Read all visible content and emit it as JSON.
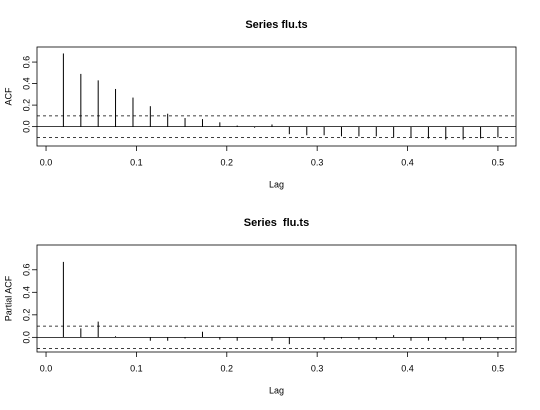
{
  "chart_data": [
    {
      "type": "stem",
      "title": "Series flu.ts",
      "x_label": "Lag",
      "y_label": "ACF",
      "x": [
        0.0192,
        0.0385,
        0.0577,
        0.0769,
        0.0962,
        0.1154,
        0.1346,
        0.1538,
        0.1731,
        0.1923,
        0.2115,
        0.2308,
        0.25,
        0.2692,
        0.2885,
        0.3077,
        0.3269,
        0.3462,
        0.3654,
        0.3846,
        0.4038,
        0.4231,
        0.4423,
        0.4615,
        0.4808,
        0.5
      ],
      "values": [
        0.68,
        0.49,
        0.43,
        0.35,
        0.27,
        0.19,
        0.12,
        0.08,
        0.07,
        0.04,
        0.01,
        -0.01,
        0.02,
        -0.07,
        -0.08,
        -0.08,
        -0.09,
        -0.09,
        -0.09,
        -0.1,
        -0.1,
        -0.11,
        -0.12,
        -0.12,
        -0.11,
        -0.1
      ],
      "confidence_bounds": [
        -0.1,
        0.1
      ],
      "color": "#000000",
      "xlim": [
        -0.01,
        0.52
      ],
      "ylim": [
        -0.18,
        0.74
      ],
      "xticks": [
        {
          "value": 0,
          "label": "0.0"
        },
        0.1,
        0.2,
        0.3,
        0.4,
        0.5
      ],
      "yticks": [
        {
          "value": 0,
          "label": "0.0"
        },
        0.2,
        0.4,
        0.6
      ]
    },
    {
      "type": "stem",
      "title": "Series  flu.ts",
      "x_label": "Lag",
      "y_label": "Partial ACF",
      "x": [
        0.0192,
        0.0385,
        0.0577,
        0.0769,
        0.0962,
        0.1154,
        0.1346,
        0.1538,
        0.1731,
        0.1923,
        0.2115,
        0.2308,
        0.25,
        0.2692,
        0.2885,
        0.3077,
        0.3269,
        0.3462,
        0.3654,
        0.3846,
        0.4038,
        0.4231,
        0.4423,
        0.4615,
        0.4808,
        0.5
      ],
      "values": [
        0.67,
        0.08,
        0.14,
        0.01,
        0.0,
        -0.03,
        -0.03,
        -0.01,
        0.05,
        -0.02,
        -0.03,
        0.0,
        -0.03,
        -0.06,
        0.0,
        -0.02,
        -0.01,
        -0.02,
        -0.02,
        0.02,
        -0.03,
        -0.03,
        -0.02,
        -0.03,
        -0.02,
        -0.02
      ],
      "confidence_bounds": [
        -0.1,
        0.1
      ],
      "color": "#000000",
      "xlim": [
        -0.01,
        0.52
      ],
      "ylim": [
        -0.13,
        0.82
      ],
      "xticks": [
        {
          "value": 0,
          "label": "0.0"
        },
        0.1,
        0.2,
        0.3,
        0.4,
        0.5
      ],
      "yticks": [
        {
          "value": 0,
          "label": "0.0"
        },
        0.2,
        0.4,
        0.6
      ]
    }
  ]
}
